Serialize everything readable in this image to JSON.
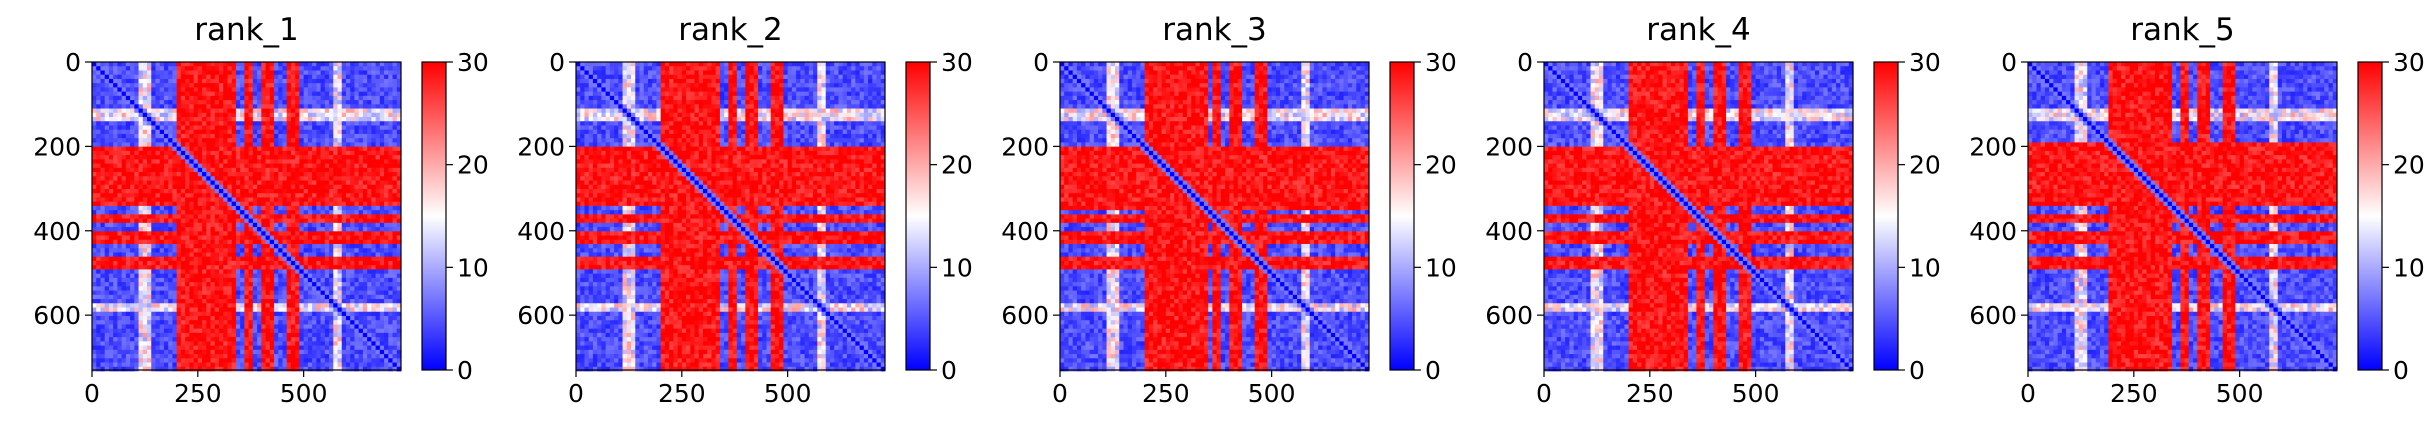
{
  "chart_data": [
    {
      "type": "heatmap",
      "title": "rank_1",
      "grid": false,
      "matrix_size": 730,
      "xticks": [
        0,
        250,
        500
      ],
      "yticks": [
        0,
        200,
        400,
        600
      ],
      "colorbar": {
        "range": [
          0,
          30
        ],
        "ticks": [
          0,
          10,
          20,
          30
        ],
        "colormap": [
          "#0000ff",
          "#ffffff",
          "#ff0000"
        ]
      },
      "bands": [
        [
          200,
          340
        ],
        [
          360,
          380
        ],
        [
          405,
          430
        ],
        [
          465,
          490
        ]
      ],
      "notch_bands": [
        [
          110,
          140
        ],
        [
          575,
          590
        ]
      ],
      "seed": 1
    },
    {
      "type": "heatmap",
      "title": "rank_2",
      "grid": false,
      "matrix_size": 730,
      "xticks": [
        0,
        250,
        500
      ],
      "yticks": [
        0,
        200,
        400,
        600
      ],
      "colorbar": {
        "range": [
          0,
          30
        ],
        "ticks": [
          0,
          10,
          20,
          30
        ],
        "colormap": [
          "#0000ff",
          "#ffffff",
          "#ff0000"
        ]
      },
      "bands": [
        [
          200,
          340
        ],
        [
          360,
          380
        ],
        [
          405,
          430
        ],
        [
          465,
          490
        ]
      ],
      "notch_bands": [
        [
          110,
          140
        ],
        [
          575,
          590
        ]
      ],
      "seed": 2
    },
    {
      "type": "heatmap",
      "title": "rank_3",
      "grid": false,
      "matrix_size": 730,
      "xticks": [
        0,
        250,
        500
      ],
      "yticks": [
        0,
        200,
        400,
        600
      ],
      "colorbar": {
        "range": [
          0,
          30
        ],
        "ticks": [
          0,
          10,
          20,
          30
        ],
        "colormap": [
          "#0000ff",
          "#ffffff",
          "#ff0000"
        ]
      },
      "bands": [
        [
          200,
          350
        ],
        [
          360,
          380
        ],
        [
          405,
          430
        ],
        [
          465,
          490
        ]
      ],
      "notch_bands": [
        [
          110,
          140
        ],
        [
          575,
          590
        ]
      ],
      "seed": 3
    },
    {
      "type": "heatmap",
      "title": "rank_4",
      "grid": false,
      "matrix_size": 730,
      "xticks": [
        0,
        250,
        500
      ],
      "yticks": [
        0,
        200,
        400,
        600
      ],
      "colorbar": {
        "range": [
          0,
          30
        ],
        "ticks": [
          0,
          10,
          20,
          30
        ],
        "colormap": [
          "#0000ff",
          "#ffffff",
          "#ff0000"
        ]
      },
      "bands": [
        [
          200,
          340
        ],
        [
          360,
          380
        ],
        [
          405,
          430
        ],
        [
          465,
          490
        ]
      ],
      "notch_bands": [
        [
          110,
          140
        ],
        [
          575,
          590
        ]
      ],
      "seed": 4
    },
    {
      "type": "heatmap",
      "title": "rank_5",
      "grid": false,
      "matrix_size": 730,
      "xticks": [
        0,
        250,
        500
      ],
      "yticks": [
        0,
        200,
        400,
        600
      ],
      "colorbar": {
        "range": [
          0,
          30
        ],
        "ticks": [
          0,
          10,
          20,
          30
        ],
        "colormap": [
          "#0000ff",
          "#ffffff",
          "#ff0000"
        ]
      },
      "bands": [
        [
          190,
          340
        ],
        [
          360,
          380
        ],
        [
          405,
          430
        ],
        [
          465,
          490
        ]
      ],
      "notch_bands": [
        [
          110,
          140
        ],
        [
          575,
          590
        ]
      ],
      "seed": 5
    }
  ]
}
